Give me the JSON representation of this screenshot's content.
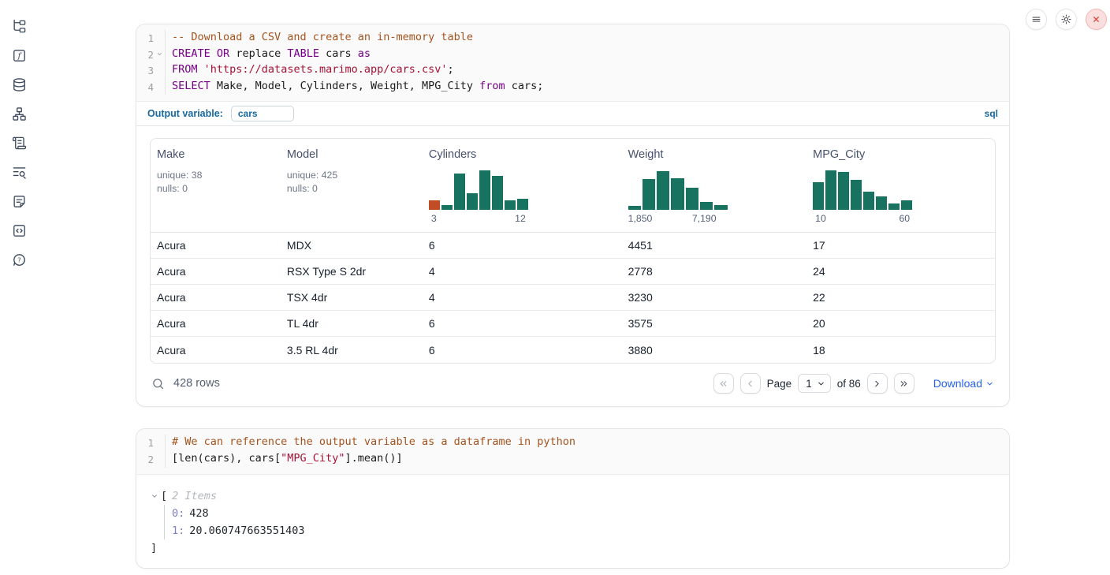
{
  "colors": {
    "hist_bar": "#17735f",
    "hist_highlight": "#c14d26",
    "accent_blue": "#19689e",
    "link_blue": "#2563eb",
    "close_red": "#db3a31"
  },
  "sidebar": {
    "icons": [
      "file-explorer",
      "variables",
      "data-sources",
      "dependency-graph",
      "scratchpad",
      "logs",
      "documentation",
      "snippets",
      "help"
    ]
  },
  "window_actions": {
    "icons": [
      "menu",
      "settings",
      "shutdown"
    ]
  },
  "sql_cell": {
    "line_numbers": [
      "1",
      "2",
      "3",
      "4"
    ],
    "lines": [
      {
        "tokens": [
          [
            "cm",
            "-- Download a CSV and create an in-memory table"
          ]
        ]
      },
      {
        "fold": true,
        "tokens": [
          [
            "kw",
            "CREATE"
          ],
          [
            "pl",
            " "
          ],
          [
            "kw",
            "OR"
          ],
          [
            "pl",
            " replace "
          ],
          [
            "kw",
            "TABLE"
          ],
          [
            "pl",
            " cars "
          ],
          [
            "kw",
            "as"
          ]
        ]
      },
      {
        "tokens": [
          [
            "kw",
            "FROM"
          ],
          [
            "pl",
            " "
          ],
          [
            "str",
            "'https://datasets.marimo.app/cars.csv'"
          ],
          [
            "pl",
            ";"
          ]
        ]
      },
      {
        "tokens": [
          [
            "kw",
            "SELECT"
          ],
          [
            "pl",
            " Make, Model, Cylinders, Weight, MPG_City "
          ],
          [
            "kw",
            "from"
          ],
          [
            "pl",
            " cars;"
          ]
        ]
      }
    ],
    "output_variable_label": "Output variable:",
    "output_variable_value": "cars",
    "language_badge": "sql"
  },
  "table": {
    "columns": [
      {
        "label": "Make",
        "unique": "unique: 38",
        "nulls": "nulls: 0"
      },
      {
        "label": "Model",
        "unique": "unique: 425",
        "nulls": "nulls: 0"
      },
      {
        "label": "Cylinders",
        "hist": {
          "type": "bar",
          "bars": [
            23,
            13,
            87,
            40,
            95,
            81,
            23,
            28
          ],
          "highlight_first": true,
          "min_label": "3",
          "max_label": "12"
        }
      },
      {
        "label": "Weight",
        "hist": {
          "type": "bar",
          "bars": [
            11,
            75,
            94,
            77,
            53,
            19,
            13
          ],
          "min_label": "1,850",
          "max_label": "7,190"
        }
      },
      {
        "label": "MPG_City",
        "hist": {
          "type": "bar",
          "bars": [
            67,
            96,
            91,
            72,
            45,
            33,
            15,
            24
          ],
          "min_label": "10",
          "max_label": "60"
        }
      }
    ],
    "rows": [
      {
        "make": "Acura",
        "model": "MDX",
        "cylinders": "6",
        "weight": "4451",
        "mpg_city": "17"
      },
      {
        "make": "Acura",
        "model": "RSX Type S 2dr",
        "cylinders": "4",
        "weight": "2778",
        "mpg_city": "24"
      },
      {
        "make": "Acura",
        "model": "TSX 4dr",
        "cylinders": "4",
        "weight": "3230",
        "mpg_city": "22"
      },
      {
        "make": "Acura",
        "model": "TL 4dr",
        "cylinders": "6",
        "weight": "3575",
        "mpg_city": "20"
      },
      {
        "make": "Acura",
        "model": "3.5 RL 4dr",
        "cylinders": "6",
        "weight": "3880",
        "mpg_city": "18"
      }
    ],
    "footer": {
      "search_icon": "search",
      "row_count": "428 rows",
      "page_label": "Page",
      "page_value": "1",
      "of_label": "of 86",
      "download_label": "Download"
    }
  },
  "python_cell": {
    "line_numbers": [
      "1",
      "2"
    ],
    "lines": [
      {
        "tokens": [
          [
            "cm",
            "# We can reference the output variable as a dataframe in python"
          ]
        ]
      },
      {
        "tokens": [
          [
            "pl",
            "[len(cars), cars["
          ],
          [
            "str",
            "\"MPG_City\""
          ],
          [
            "pl",
            "].mean()]"
          ]
        ]
      }
    ],
    "output": {
      "open_bracket": "[",
      "items_label": "2 Items",
      "entries": [
        {
          "key": "0:",
          "value": "428"
        },
        {
          "key": "1:",
          "value": "20.060747663551403"
        }
      ],
      "close_bracket": "]"
    }
  }
}
